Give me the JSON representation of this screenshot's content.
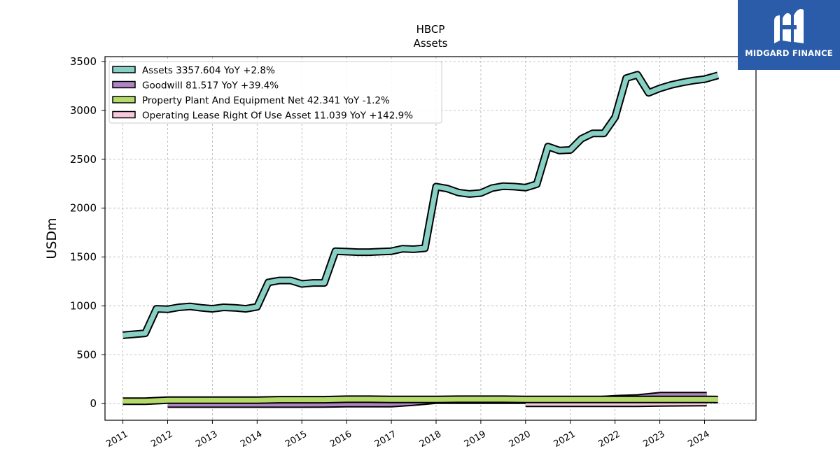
{
  "header": {
    "title": "HBCP",
    "subtitle": "Assets"
  },
  "logo": {
    "text": "MIDGARD FINANCE",
    "background": "#2a5caa",
    "icon": "mf-monogram-icon"
  },
  "chart_data": {
    "type": "line",
    "title": "HBCP",
    "subtitle": "Assets",
    "ylabel": "USDm",
    "xlabel": "",
    "ylim": [
      -170,
      3550
    ],
    "xlim": [
      2010.6,
      2025.15
    ],
    "yticks": [
      0,
      500,
      1000,
      1500,
      2000,
      2500,
      3000,
      3500
    ],
    "xticks": [
      "2011",
      "2012",
      "2013",
      "2014",
      "2015",
      "2016",
      "2017",
      "2018",
      "2019",
      "2020",
      "2021",
      "2022",
      "2023",
      "2024"
    ],
    "grid": true,
    "legend_position": "top-left",
    "series": [
      {
        "name": "Assets",
        "legend": "Assets  3357.604 YoY +2.8%",
        "color": "#88d0c4",
        "x": [
          2011.0,
          2011.25,
          2011.5,
          2011.75,
          2012.0,
          2012.25,
          2012.5,
          2012.75,
          2013.0,
          2013.25,
          2013.5,
          2013.75,
          2014.0,
          2014.25,
          2014.5,
          2014.75,
          2015.0,
          2015.25,
          2015.5,
          2015.75,
          2016.0,
          2016.25,
          2016.5,
          2016.75,
          2017.0,
          2017.25,
          2017.5,
          2017.75,
          2018.0,
          2018.25,
          2018.5,
          2018.75,
          2019.0,
          2019.25,
          2019.5,
          2019.75,
          2020.0,
          2020.25,
          2020.5,
          2020.75,
          2021.0,
          2021.25,
          2021.5,
          2021.75,
          2022.0,
          2022.25,
          2022.5,
          2022.75,
          2023.0,
          2023.25,
          2023.5,
          2023.75,
          2024.0,
          2024.3
        ],
        "y": [
          700,
          710,
          720,
          970,
          965,
          985,
          995,
          980,
          970,
          985,
          980,
          970,
          990,
          1240,
          1260,
          1260,
          1225,
          1235,
          1235,
          1560,
          1555,
          1550,
          1550,
          1555,
          1560,
          1585,
          1580,
          1590,
          2220,
          2200,
          2160,
          2145,
          2155,
          2205,
          2225,
          2220,
          2210,
          2245,
          2630,
          2590,
          2595,
          2710,
          2765,
          2765,
          2930,
          3330,
          3365,
          3180,
          3225,
          3260,
          3285,
          3305,
          3320,
          3358
        ]
      },
      {
        "name": "Goodwill",
        "legend": "Goodwill  81.517 YoY +39.4%",
        "color": "#b085c4",
        "x": [
          2012.0,
          2012.5,
          2013.0,
          2013.5,
          2014.0,
          2014.5,
          2015.0,
          2015.5,
          2016.0,
          2016.5,
          2017.0,
          2017.5,
          2018.0,
          2018.5,
          2019.0,
          2019.5,
          2020.0,
          2020.5,
          2021.0,
          2021.5,
          2022.0,
          2022.5,
          2023.0,
          2023.5,
          2024.05
        ],
        "y": [
          -5,
          -5,
          -5,
          -5,
          -5,
          -5,
          -5,
          -3,
          0,
          0,
          0,
          15,
          35,
          35,
          35,
          35,
          35,
          35,
          35,
          35,
          50,
          58,
          82,
          82,
          82
        ]
      },
      {
        "name": "Property Plant And Equipment Net",
        "legend": "Property Plant And Equipment Net  42.341 YoY -1.2%",
        "color": "#b5da6a",
        "x": [
          2011.0,
          2011.5,
          2012.0,
          2012.5,
          2013.0,
          2013.5,
          2014.0,
          2014.5,
          2015.0,
          2015.5,
          2016.0,
          2016.5,
          2017.0,
          2017.5,
          2018.0,
          2018.5,
          2019.0,
          2019.5,
          2020.0,
          2020.5,
          2021.0,
          2021.5,
          2022.0,
          2022.5,
          2023.0,
          2023.5,
          2024.0,
          2024.3
        ],
        "y": [
          25,
          25,
          35,
          35,
          35,
          35,
          35,
          40,
          40,
          40,
          45,
          45,
          43,
          43,
          43,
          45,
          45,
          45,
          43,
          43,
          43,
          43,
          43,
          43,
          43,
          43,
          43,
          42
        ]
      },
      {
        "name": "Operating Lease Right Of Use Asset",
        "legend": "Operating Lease Right Of Use Asset  11.039 YoY +142.9%",
        "color": "#f8c8dc",
        "x": [
          2020.0,
          2020.5,
          2021.0,
          2021.5,
          2022.0,
          2022.5,
          2023.0,
          2023.5,
          2024.05
        ],
        "y": [
          3,
          3,
          3,
          3,
          3,
          4,
          7,
          9,
          11
        ]
      }
    ]
  }
}
